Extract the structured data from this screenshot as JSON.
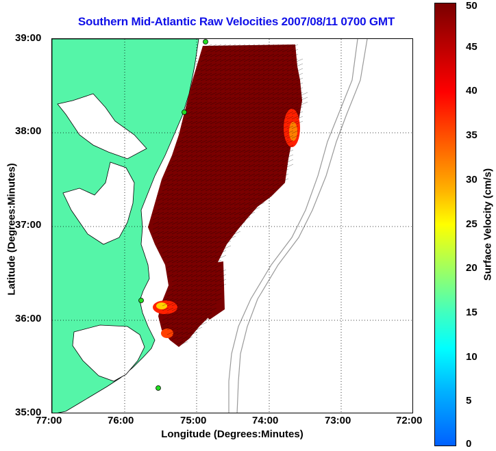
{
  "title": "Southern Mid-Atlantic Raw Velocities 2007/08/11 0700 GMT",
  "x_axis": {
    "label": "Longitude (Degrees:Minutes)",
    "ticks": [
      "77:00",
      "76:00",
      "75:00",
      "74:00",
      "73:00",
      "72:00"
    ]
  },
  "y_axis": {
    "label": "Latitude (Degrees:Minutes)",
    "ticks": [
      "39:00",
      "38:00",
      "37:00",
      "36:00",
      "35:00"
    ]
  },
  "colorbar": {
    "label": "Surface Velocity (cm/s)",
    "ticks": [
      "50",
      "45",
      "40",
      "35",
      "30",
      "25",
      "20",
      "15",
      "10",
      "5",
      "0"
    ],
    "range": [
      0,
      50
    ]
  },
  "map": {
    "lon_range": [
      -77,
      -72
    ],
    "lat_range": [
      35,
      39
    ],
    "land_color": "#55f5a8",
    "water_color": "#ffffff",
    "field_color": "#7a0000",
    "hotspot_colors": [
      "#ff2000",
      "#ff8000",
      "#ffd000"
    ],
    "station_color": "#22dd22"
  }
}
